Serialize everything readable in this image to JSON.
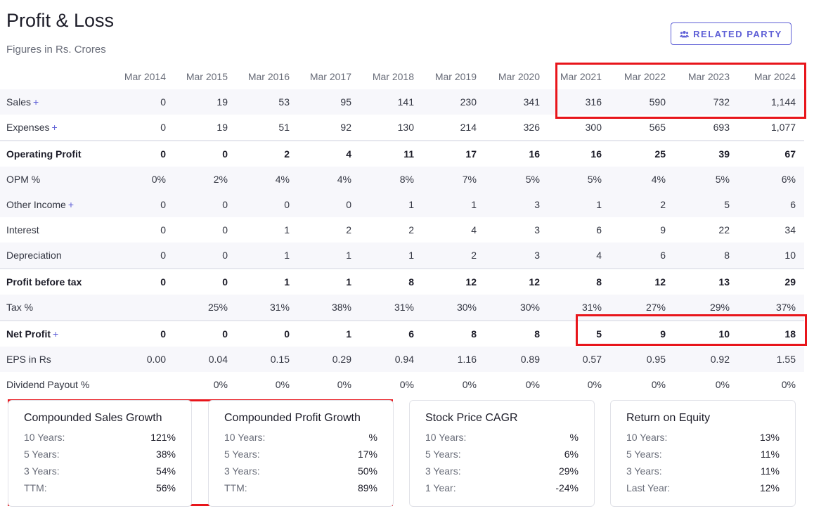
{
  "header": {
    "title": "Profit & Loss",
    "subtitle": "Figures in Rs. Crores",
    "related_party_label": "RELATED PARTY",
    "related_party_icon": "users-icon"
  },
  "table": {
    "columns": [
      "Mar 2014",
      "Mar 2015",
      "Mar 2016",
      "Mar 2017",
      "Mar 2018",
      "Mar 2019",
      "Mar 2020",
      "Mar 2021",
      "Mar 2022",
      "Mar 2023",
      "Mar 2024"
    ],
    "rows": [
      {
        "label": "Sales",
        "plus": "+",
        "values": [
          "0",
          "19",
          "53",
          "95",
          "141",
          "230",
          "341",
          "316",
          "590",
          "732",
          "1,144"
        ]
      },
      {
        "label": "Expenses",
        "plus": "+",
        "values": [
          "0",
          "19",
          "51",
          "92",
          "130",
          "214",
          "326",
          "300",
          "565",
          "693",
          "1,077"
        ]
      },
      {
        "label": "Operating Profit",
        "plus": "",
        "values": [
          "0",
          "0",
          "2",
          "4",
          "11",
          "17",
          "16",
          "16",
          "25",
          "39",
          "67"
        ]
      },
      {
        "label": "OPM %",
        "plus": "",
        "values": [
          "0%",
          "2%",
          "4%",
          "4%",
          "8%",
          "7%",
          "5%",
          "5%",
          "4%",
          "5%",
          "6%"
        ]
      },
      {
        "label": "Other Income",
        "plus": "+",
        "values": [
          "0",
          "0",
          "0",
          "0",
          "1",
          "1",
          "3",
          "1",
          "2",
          "5",
          "6"
        ]
      },
      {
        "label": "Interest",
        "plus": "",
        "values": [
          "0",
          "0",
          "1",
          "2",
          "2",
          "4",
          "3",
          "6",
          "9",
          "22",
          "34"
        ]
      },
      {
        "label": "Depreciation",
        "plus": "",
        "values": [
          "0",
          "0",
          "1",
          "1",
          "1",
          "2",
          "3",
          "4",
          "6",
          "8",
          "10"
        ]
      },
      {
        "label": "Profit before tax",
        "plus": "",
        "values": [
          "0",
          "0",
          "1",
          "1",
          "8",
          "12",
          "12",
          "8",
          "12",
          "13",
          "29"
        ]
      },
      {
        "label": "Tax %",
        "plus": "",
        "values": [
          "",
          "25%",
          "31%",
          "38%",
          "31%",
          "30%",
          "30%",
          "31%",
          "27%",
          "29%",
          "37%"
        ]
      },
      {
        "label": "Net Profit",
        "plus": "+",
        "values": [
          "0",
          "0",
          "0",
          "1",
          "6",
          "8",
          "8",
          "5",
          "9",
          "10",
          "18"
        ]
      },
      {
        "label": "EPS in Rs",
        "plus": "",
        "values": [
          "0.00",
          "0.04",
          "0.15",
          "0.29",
          "0.94",
          "1.16",
          "0.89",
          "0.57",
          "0.95",
          "0.92",
          "1.55"
        ]
      },
      {
        "label": "Dividend Payout %",
        "plus": "",
        "values": [
          "",
          "0%",
          "0%",
          "0%",
          "0%",
          "0%",
          "0%",
          "0%",
          "0%",
          "0%",
          "0%"
        ]
      }
    ]
  },
  "cards": [
    {
      "title": "Compounded Sales Growth",
      "rows": [
        {
          "k": "10 Years:",
          "v": "121%"
        },
        {
          "k": "5 Years:",
          "v": "38%"
        },
        {
          "k": "3 Years:",
          "v": "54%"
        },
        {
          "k": "TTM:",
          "v": "56%"
        }
      ]
    },
    {
      "title": "Compounded Profit Growth",
      "rows": [
        {
          "k": "10 Years:",
          "v": "%"
        },
        {
          "k": "5 Years:",
          "v": "17%"
        },
        {
          "k": "3 Years:",
          "v": "50%"
        },
        {
          "k": "TTM:",
          "v": "89%"
        }
      ]
    },
    {
      "title": "Stock Price CAGR",
      "rows": [
        {
          "k": "10 Years:",
          "v": "%"
        },
        {
          "k": "5 Years:",
          "v": "6%"
        },
        {
          "k": "3 Years:",
          "v": "29%"
        },
        {
          "k": "1 Year:",
          "v": "-24%"
        }
      ]
    },
    {
      "title": "Return on Equity",
      "rows": [
        {
          "k": "10 Years:",
          "v": "13%"
        },
        {
          "k": "5 Years:",
          "v": "11%"
        },
        {
          "k": "3 Years:",
          "v": "11%"
        },
        {
          "k": "Last Year:",
          "v": "12%"
        }
      ]
    }
  ],
  "colors": {
    "accent": "#5e5fd6",
    "highlight": "#e8151b"
  }
}
